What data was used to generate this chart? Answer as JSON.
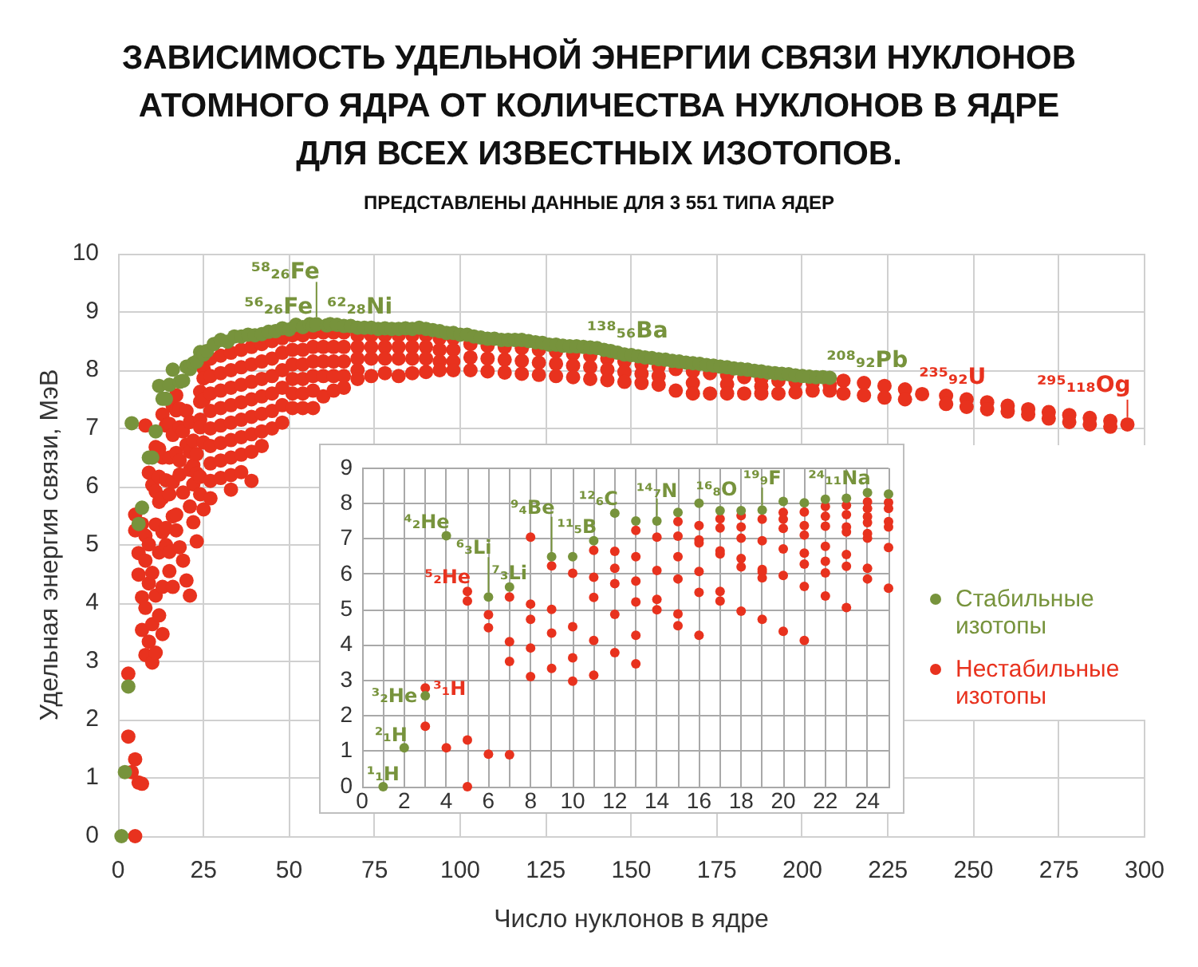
{
  "chart_data": [
    {
      "type": "scatter",
      "title": "ЗАВИСИМОСТЬ УДЕЛЬНОЙ ЭНЕРГИИ СВЯЗИ НУКЛОНОВ АТОМНОГО ЯДРА ОТ КОЛИЧЕСТВА НУКЛОНОВ В ЯДРЕ ДЛЯ ВСЕХ ИЗВЕСТНЫХ ИЗОТОПОВ.",
      "subtitle": "ПРЕДСТАВЛЕНЫ ДАННЫЕ ДЛЯ 3 551 ТИПА ЯДЕР",
      "xlabel": "Число нуклонов в ядре",
      "ylabel": "Удельная энергия связи, МэВ",
      "xlim": [
        0,
        300
      ],
      "xticks": [
        0,
        25,
        50,
        75,
        100,
        125,
        150,
        175,
        200,
        225,
        250,
        275,
        300
      ],
      "ylim": [
        0,
        10
      ],
      "yticks": [
        0,
        1,
        2,
        3,
        4,
        5,
        6,
        7,
        8,
        9,
        10
      ],
      "grid": true,
      "legend": "right",
      "marker": "circle",
      "series": [
        {
          "name": "Стабильные изотопы",
          "color": "#77933c",
          "x": [
            1,
            2,
            3,
            4,
            6,
            7,
            9,
            10,
            11,
            12,
            13,
            14,
            15,
            16,
            18,
            19,
            20,
            21,
            22,
            23,
            24,
            25,
            26,
            28,
            30,
            32,
            34,
            36,
            38,
            40,
            42,
            44,
            46,
            48,
            50,
            52,
            54,
            56,
            57,
            58,
            61,
            62,
            64,
            66,
            68,
            70,
            72,
            74,
            76,
            78,
            80,
            82,
            84,
            86,
            88,
            90,
            92,
            94,
            96,
            98,
            100,
            102,
            104,
            106,
            108,
            110,
            112,
            114,
            116,
            118,
            120,
            122,
            124,
            126,
            128,
            130,
            132,
            134,
            136,
            138,
            140,
            142,
            144,
            146,
            148,
            150,
            152,
            154,
            156,
            158,
            160,
            162,
            164,
            166,
            168,
            170,
            172,
            174,
            176,
            178,
            180,
            182,
            184,
            186,
            188,
            190,
            192,
            194,
            196,
            198,
            200,
            202,
            204,
            206,
            208
          ],
          "values": [
            0,
            1.1,
            2.57,
            7.09,
            5.36,
            5.64,
            6.5,
            6.5,
            6.95,
            7.73,
            7.51,
            7.51,
            7.75,
            8.01,
            7.8,
            7.82,
            8.06,
            8.02,
            8.12,
            8.15,
            8.31,
            8.27,
            8.33,
            8.45,
            8.52,
            8.49,
            8.58,
            8.58,
            8.61,
            8.6,
            8.62,
            8.66,
            8.67,
            8.72,
            8.7,
            8.78,
            8.74,
            8.79,
            8.77,
            8.79,
            8.77,
            8.79,
            8.78,
            8.76,
            8.76,
            8.73,
            8.73,
            8.73,
            8.71,
            8.72,
            8.71,
            8.71,
            8.72,
            8.71,
            8.73,
            8.71,
            8.69,
            8.67,
            8.64,
            8.64,
            8.61,
            8.61,
            8.58,
            8.56,
            8.54,
            8.54,
            8.52,
            8.52,
            8.52,
            8.52,
            8.5,
            8.48,
            8.47,
            8.44,
            8.44,
            8.42,
            8.41,
            8.41,
            8.4,
            8.39,
            8.38,
            8.35,
            8.33,
            8.3,
            8.27,
            8.26,
            8.24,
            8.22,
            8.21,
            8.19,
            8.18,
            8.16,
            8.15,
            8.13,
            8.12,
            8.11,
            8.09,
            8.08,
            8.06,
            8.05,
            8.03,
            8.02,
            8.01,
            7.99,
            7.98,
            7.96,
            7.95,
            7.94,
            7.93,
            7.91,
            7.9,
            7.89,
            7.88,
            7.88,
            7.87
          ]
        },
        {
          "name": "Нестабильные изотопы",
          "color": "#e8321e",
          "x": [
            3,
            3,
            4,
            5,
            5,
            5,
            5,
            6,
            6,
            6,
            7,
            7,
            7,
            7,
            8,
            8,
            8,
            8,
            8,
            9,
            9,
            9,
            9,
            10,
            10,
            10,
            10,
            11,
            11,
            11,
            11,
            11,
            12,
            12,
            12,
            12,
            12,
            13,
            13,
            13,
            13,
            13,
            13,
            14,
            14,
            14,
            14,
            15,
            15,
            15,
            15,
            15,
            16,
            16,
            16,
            16,
            16,
            17,
            17,
            17,
            17,
            17,
            18,
            18,
            18,
            18,
            18,
            19,
            19,
            19,
            20,
            20,
            20,
            21,
            21,
            21,
            21,
            21,
            22,
            22,
            22,
            22,
            23,
            23,
            23,
            24,
            24,
            24,
            24,
            24,
            24,
            25,
            25,
            25,
            25,
            25,
            27,
            27,
            27,
            27,
            27,
            27,
            27,
            27,
            27,
            30,
            30,
            30,
            30,
            30,
            30,
            30,
            30,
            33,
            33,
            33,
            33,
            33,
            33,
            33,
            33,
            33,
            36,
            36,
            36,
            36,
            36,
            36,
            36,
            36,
            39,
            39,
            39,
            39,
            39,
            39,
            39,
            39,
            42,
            42,
            42,
            42,
            42,
            42,
            42,
            45,
            45,
            45,
            45,
            45,
            45,
            48,
            48,
            48,
            48,
            48,
            48,
            51,
            51,
            51,
            51,
            51,
            51,
            54,
            54,
            54,
            54,
            54,
            54,
            57,
            57,
            57,
            57,
            57,
            57,
            60,
            60,
            60,
            60,
            60,
            63,
            63,
            63,
            63,
            63,
            66,
            66,
            66,
            66,
            66,
            70,
            70,
            70,
            70,
            70,
            74,
            74,
            74,
            74,
            78,
            78,
            78,
            78,
            82,
            82,
            82,
            82,
            86,
            86,
            86,
            86,
            90,
            90,
            90,
            90,
            94,
            94,
            94,
            94,
            98,
            98,
            98,
            98,
            103,
            103,
            103,
            108,
            108,
            108,
            113,
            113,
            113,
            118,
            118,
            118,
            123,
            123,
            123,
            128,
            128,
            128,
            133,
            133,
            133,
            138,
            138,
            138,
            143,
            143,
            143,
            148,
            148,
            148,
            153,
            153,
            153,
            158,
            158,
            158,
            163,
            163,
            168,
            168,
            168,
            173,
            173,
            178,
            178,
            178,
            183,
            183,
            188,
            188,
            188,
            193,
            193,
            198,
            198,
            203,
            203,
            208,
            208,
            212,
            212,
            218,
            218,
            224,
            224,
            230,
            230,
            235,
            242,
            242,
            248,
            248,
            254,
            254,
            260,
            260,
            266,
            266,
            272,
            272,
            278,
            278,
            284,
            284,
            290,
            290,
            295
          ],
          "values": [
            2.79,
            1.71,
            1.1,
            5.52,
            5.25,
            1.32,
            0,
            4.86,
            4.49,
            0.92,
            5.36,
            4.1,
            3.54,
            0.9,
            7.05,
            5.16,
            4.73,
            3.92,
            3.11,
            6.24,
            5.01,
            4.34,
            3.34,
            6.03,
            4.52,
            3.64,
            2.98,
            6.68,
            5.92,
            5.35,
            4.13,
            3.15,
            6.65,
            6.17,
            5.74,
            4.87,
            3.79,
            7.24,
            6.5,
            5.81,
            5.22,
            4.28,
            3.47,
            7.05,
            6.11,
            5.29,
            5.0,
            7.08,
            6.5,
            5.87,
            4.88,
            4.55,
            7.38,
            6.89,
            6.08,
            5.49,
            4.28,
            7.57,
            7.31,
            6.58,
            5.52,
            5.25,
            7.34,
            7.02,
            6.45,
            6.21,
            4.96,
            6.95,
            5.9,
            4.73,
            7.3,
            6.72,
            4.39,
            7.11,
            6.6,
            6.29,
            5.66,
            4.13,
            6.79,
            6.37,
            6.04,
            5.39,
            6.56,
            6.23,
            5.06,
            7.63,
            7.46,
            7.15,
            7.02,
            6.17,
            5.87,
            8.03,
            7.86,
            7.49,
            6.76,
            5.61,
            8.2,
            7.9,
            7.6,
            7.3,
            7.0,
            6.7,
            6.4,
            6.1,
            5.8,
            8.25,
            7.95,
            7.65,
            7.35,
            7.05,
            6.75,
            6.45,
            6.15,
            8.3,
            8.0,
            7.7,
            7.4,
            7.1,
            6.8,
            6.5,
            6.2,
            5.95,
            8.35,
            8.05,
            7.75,
            7.45,
            7.15,
            6.85,
            6.55,
            6.25,
            8.4,
            8.1,
            7.8,
            7.5,
            7.2,
            6.9,
            6.6,
            6.1,
            8.45,
            8.15,
            7.85,
            7.55,
            7.25,
            6.95,
            6.7,
            8.5,
            8.2,
            7.9,
            7.6,
            7.3,
            7.0,
            8.55,
            8.3,
            8.0,
            7.7,
            7.4,
            7.1,
            8.6,
            8.35,
            8.1,
            7.85,
            7.6,
            7.35,
            8.6,
            8.35,
            8.1,
            7.85,
            7.6,
            7.35,
            8.65,
            8.4,
            8.15,
            7.9,
            7.65,
            7.35,
            8.65,
            8.4,
            8.15,
            7.9,
            7.55,
            8.65,
            8.4,
            8.15,
            7.9,
            7.65,
            8.65,
            8.4,
            8.15,
            7.9,
            7.7,
            8.6,
            8.4,
            8.2,
            8.0,
            7.85,
            8.6,
            8.4,
            8.2,
            7.9,
            8.6,
            8.4,
            8.2,
            7.95,
            8.6,
            8.4,
            8.2,
            7.9,
            8.6,
            8.4,
            8.2,
            7.95,
            8.6,
            8.4,
            8.2,
            7.97,
            8.55,
            8.35,
            8.15,
            8.0,
            8.55,
            8.35,
            8.15,
            8.0,
            8.45,
            8.22,
            8.0,
            8.42,
            8.2,
            7.98,
            8.4,
            8.18,
            7.96,
            8.38,
            8.16,
            7.94,
            8.35,
            8.13,
            7.92,
            8.32,
            8.11,
            7.9,
            8.28,
            8.08,
            7.88,
            8.25,
            8.05,
            7.85,
            8.2,
            8.01,
            7.83,
            8.15,
            7.97,
            7.8,
            8.1,
            7.94,
            7.78,
            8.06,
            7.9,
            7.75,
            8.02,
            7.65,
            7.98,
            7.78,
            7.6,
            7.95,
            7.6,
            7.92,
            7.76,
            7.6,
            7.88,
            7.6,
            7.85,
            7.72,
            7.6,
            7.82,
            7.6,
            7.8,
            7.62,
            7.78,
            7.65,
            7.75,
            7.65,
            7.82,
            7.6,
            7.78,
            7.57,
            7.73,
            7.53,
            7.67,
            7.5,
            7.59,
            7.56,
            7.42,
            7.5,
            7.37,
            7.45,
            7.33,
            7.39,
            7.29,
            7.33,
            7.24,
            7.28,
            7.17,
            7.23,
            7.11,
            7.18,
            7.07,
            7.13,
            7.03,
            7.07
          ]
        }
      ],
      "annotations": [
        {
          "text": "⁵⁶₂₆Fe",
          "x": 56,
          "y": 8.79
        },
        {
          "text": "⁵⁸₂₆Fe",
          "x": 58,
          "y": 8.79
        },
        {
          "text": "⁶²₂₈Ni",
          "x": 62,
          "y": 8.79
        },
        {
          "text": "¹³⁸₅₆Ba",
          "x": 138,
          "y": 8.39
        },
        {
          "text": "²⁰⁸₉₂Pb",
          "x": 208,
          "y": 7.87
        },
        {
          "text": "²³⁵₉₂U",
          "x": 235,
          "y": 7.59
        },
        {
          "text": "²⁹⁵₁₁₈Og",
          "x": 295,
          "y": 7.07
        }
      ]
    },
    {
      "type": "scatter",
      "xlim": [
        0,
        25
      ],
      "xticks": [
        0,
        {
          "value": 1,
          "label": null
        },
        2,
        {
          "value": 3,
          "label": null
        },
        4,
        {
          "value": 5,
          "label": null
        },
        6,
        {
          "value": 7,
          "label": null
        },
        8,
        {
          "value": 9,
          "label": null
        },
        10,
        {
          "value": 11,
          "label": null
        },
        12,
        {
          "value": 13,
          "label": null
        },
        14,
        {
          "value": 15,
          "label": null
        },
        16,
        {
          "value": 17,
          "label": null
        },
        18,
        {
          "value": 19,
          "label": null
        },
        20,
        {
          "value": 21,
          "label": null
        },
        22,
        {
          "value": 23,
          "label": null
        },
        24,
        {
          "value": 25,
          "label": null
        }
      ],
      "ylim": [
        0,
        9
      ],
      "yticks": [
        0,
        1,
        2,
        3,
        4,
        5,
        6,
        7,
        8,
        9
      ],
      "grid": true,
      "marker": "circle",
      "series": [
        {
          "color": "#77933c",
          "x": [
            1,
            2,
            3,
            4,
            6,
            7,
            9,
            10,
            11,
            12,
            13,
            14,
            15,
            16,
            17,
            18,
            19,
            20,
            21,
            22,
            23,
            24,
            25
          ],
          "values": [
            0,
            1.1,
            2.57,
            7.09,
            5.36,
            5.64,
            6.5,
            6.5,
            6.95,
            7.73,
            7.51,
            7.51,
            7.75,
            8.01,
            7.8,
            7.8,
            7.82,
            8.06,
            8.02,
            8.12,
            8.15,
            8.31,
            8.27
          ]
        },
        {
          "color": "#e8321e",
          "x": [
            3,
            3,
            4,
            5,
            5,
            5,
            5,
            6,
            6,
            6,
            7,
            7,
            7,
            7,
            8,
            8,
            8,
            8,
            8,
            9,
            9,
            9,
            9,
            10,
            10,
            10,
            10,
            11,
            11,
            11,
            11,
            11,
            12,
            12,
            12,
            12,
            12,
            13,
            13,
            13,
            13,
            13,
            13,
            14,
            14,
            14,
            14,
            15,
            15,
            15,
            15,
            15,
            15,
            16,
            16,
            16,
            16,
            16,
            16,
            17,
            17,
            17,
            17,
            17,
            17,
            18,
            18,
            18,
            18,
            18,
            18,
            19,
            19,
            19,
            19,
            19,
            19,
            20,
            20,
            20,
            20,
            20,
            20,
            21,
            21,
            21,
            21,
            21,
            21,
            21,
            22,
            22,
            22,
            22,
            22,
            22,
            22,
            23,
            23,
            23,
            23,
            23,
            23,
            23,
            24,
            24,
            24,
            24,
            24,
            24,
            24,
            24,
            25,
            25,
            25,
            25,
            25,
            25
          ],
          "values": [
            2.79,
            1.71,
            1.1,
            5.52,
            5.25,
            1.32,
            0,
            4.86,
            4.49,
            0.92,
            5.36,
            4.1,
            3.54,
            0.9,
            7.05,
            5.16,
            4.73,
            3.92,
            3.11,
            6.24,
            5.01,
            4.34,
            3.34,
            6.03,
            4.52,
            3.64,
            2.98,
            6.68,
            5.92,
            5.35,
            4.13,
            3.15,
            6.65,
            6.17,
            5.74,
            4.87,
            3.79,
            7.24,
            6.5,
            5.81,
            5.22,
            4.28,
            3.47,
            7.05,
            6.11,
            5.29,
            5.0,
            7.49,
            7.08,
            6.5,
            5.87,
            4.88,
            4.55,
            7.38,
            6.97,
            6.89,
            6.08,
            5.49,
            4.28,
            7.57,
            7.31,
            6.66,
            6.58,
            5.52,
            5.25,
            7.66,
            7.34,
            7.02,
            6.45,
            6.21,
            4.96,
            7.56,
            6.95,
            6.14,
            6.07,
            5.9,
            4.73,
            7.75,
            7.56,
            7.3,
            6.72,
            5.97,
            4.39,
            7.76,
            7.38,
            7.11,
            6.6,
            6.29,
            5.66,
            4.13,
            7.92,
            7.64,
            7.36,
            6.79,
            6.37,
            6.04,
            5.39,
            7.95,
            7.69,
            7.34,
            7.2,
            6.56,
            6.23,
            5.06,
            8.05,
            7.86,
            7.63,
            7.46,
            7.15,
            7.02,
            6.17,
            5.87,
            8.03,
            7.86,
            7.49,
            7.34,
            6.76,
            5.61
          ]
        }
      ],
      "annotations": [
        {
          "text": "¹₁H",
          "x": 1,
          "y": 0
        },
        {
          "text": "²₁H",
          "x": 2,
          "y": 1.1
        },
        {
          "text": "³₂He",
          "x": 3,
          "y": 2.57
        },
        {
          "text": "³₁H",
          "x": 3,
          "y": 2.79
        },
        {
          "text": "⁴₂He",
          "x": 4,
          "y": 7.09
        },
        {
          "text": "⁵₂He",
          "x": 5,
          "y": 5.52
        },
        {
          "text": "⁶₃Li",
          "x": 6,
          "y": 5.36
        },
        {
          "text": "⁷₃Li",
          "x": 7,
          "y": 5.64
        },
        {
          "text": "⁹₄Be",
          "x": 9,
          "y": 6.5
        },
        {
          "text": "¹¹₅B",
          "x": 11,
          "y": 6.95
        },
        {
          "text": "¹²₆C",
          "x": 12,
          "y": 7.73
        },
        {
          "text": "¹⁴₇N",
          "x": 14,
          "y": 7.51
        },
        {
          "text": "¹⁶₈O",
          "x": 16,
          "y": 8.01
        },
        {
          "text": "¹⁹₉F",
          "x": 19,
          "y": 7.82
        },
        {
          "text": "²⁴₁₁Na",
          "x": 24,
          "y": 8.31
        }
      ]
    }
  ]
}
